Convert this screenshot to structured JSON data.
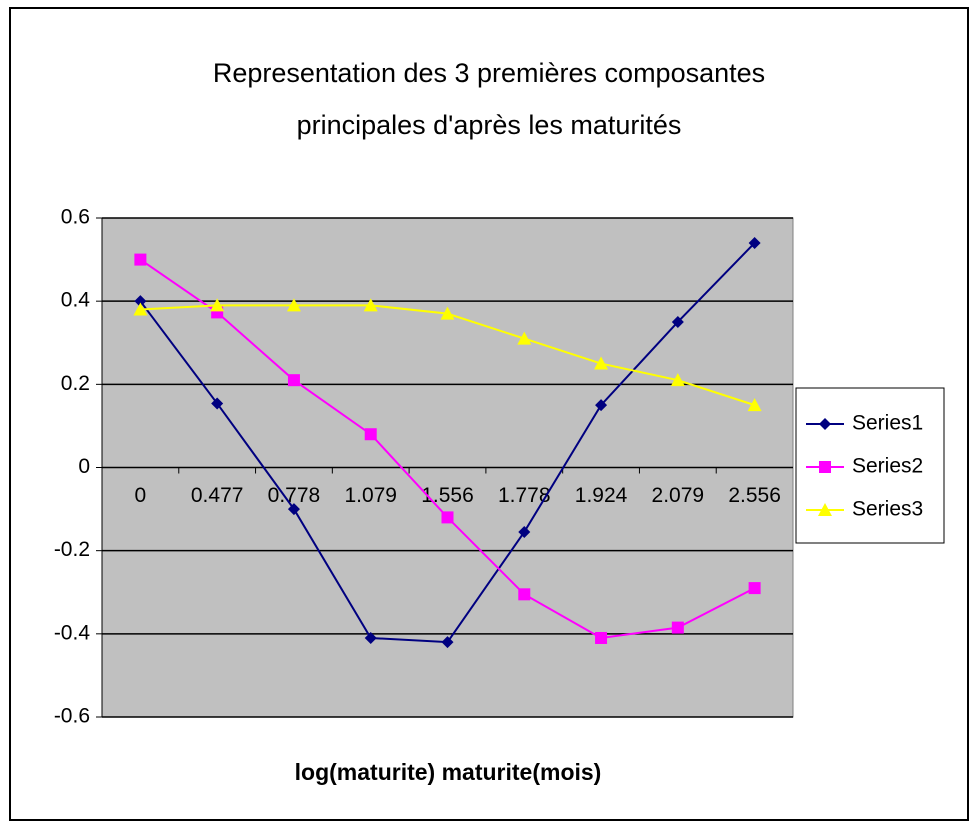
{
  "chart_data": {
    "type": "line",
    "title": [
      "Representation des 3 premières composantes",
      "principales d'après les maturités"
    ],
    "x_label": "log(maturite) maturite(mois)",
    "categories": [
      "0",
      "0.477",
      "0.778",
      "1.079",
      "1.556",
      "1.778",
      "1.924",
      "2.079",
      "2.556"
    ],
    "series": [
      {
        "name": "Series1",
        "color": "#000080",
        "marker": "diamond",
        "values": [
          0.4,
          0.154,
          -0.1,
          -0.41,
          -0.42,
          -0.155,
          0.15,
          0.35,
          0.54
        ]
      },
      {
        "name": "Series2",
        "color": "#ff00ff",
        "marker": "square",
        "values": [
          0.5,
          0.373,
          0.21,
          0.08,
          -0.12,
          -0.305,
          -0.41,
          -0.385,
          -0.29
        ]
      },
      {
        "name": "Series3",
        "color": "#ffff00",
        "marker": "triangle",
        "values": [
          0.38,
          0.39,
          0.39,
          0.39,
          0.37,
          0.31,
          0.25,
          0.21,
          0.15
        ]
      }
    ],
    "ylim": [
      -0.6,
      0.6
    ],
    "yticks": [
      0.6,
      0.4,
      0.2,
      0,
      -0.2,
      -0.4,
      -0.6
    ],
    "grid": true,
    "legend": "right"
  }
}
